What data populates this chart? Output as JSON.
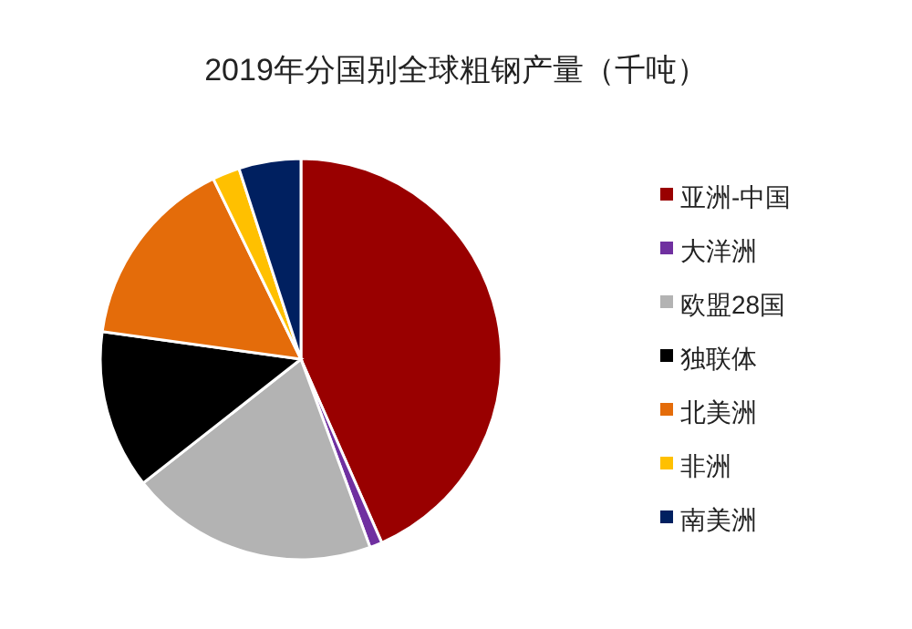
{
  "chart_data": {
    "type": "pie",
    "title": "2019年分国别全球粗钢产量（千吨）",
    "categories": [
      "亚洲-中国",
      "大洋洲",
      "欧盟28国",
      "独联体",
      "北美洲",
      "非洲",
      "南美洲"
    ],
    "values": [
      43.4,
      1,
      20,
      12.8,
      15.6,
      2.2,
      5
    ],
    "colors": [
      "#990000",
      "#7030a0",
      "#b3b3b3",
      "#000000",
      "#e46c0a",
      "#ffc000",
      "#002060"
    ],
    "legend": "right"
  }
}
